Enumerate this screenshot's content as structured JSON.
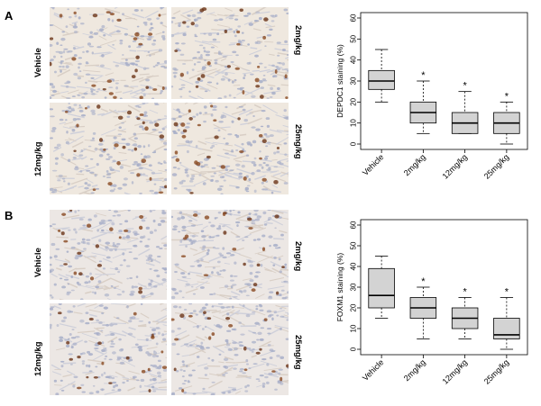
{
  "panels": [
    {
      "letter": "A",
      "image_labels": {
        "top_left": "Vehicle",
        "top_right": "2mg/kg",
        "bottom_left": "12mg/kg",
        "bottom_right": "25mg/kg"
      }
    },
    {
      "letter": "B",
      "image_labels": {
        "top_left": "Vehicle",
        "top_right": "2mg/kg",
        "bottom_left": "12mg/kg",
        "bottom_right": "25mg/kg"
      }
    }
  ],
  "chart_data": [
    {
      "type": "box",
      "title": "",
      "xlabel": "",
      "ylabel": "DEPDC1 staining (%)",
      "ylim": [
        0,
        60
      ],
      "yticks": [
        0,
        10,
        20,
        30,
        40,
        50,
        60
      ],
      "categories": [
        "Vehicle",
        "2mg/kg",
        "12mg/kg",
        "25mg/kg"
      ],
      "boxes": [
        {
          "min": 20,
          "q1": 26,
          "median": 30,
          "q3": 35,
          "max": 45,
          "star": ""
        },
        {
          "min": 5,
          "q1": 10,
          "median": 15,
          "q3": 20,
          "max": 30,
          "star": "*"
        },
        {
          "min": 5,
          "q1": 5,
          "median": 10,
          "q3": 15,
          "max": 25,
          "star": "*"
        },
        {
          "min": 0,
          "q1": 5,
          "median": 10,
          "q3": 15,
          "max": 20,
          "star": "*"
        }
      ],
      "box_fill": "#d3d3d3"
    },
    {
      "type": "box",
      "title": "",
      "xlabel": "",
      "ylabel": "FOXM1 staining (%)",
      "ylim": [
        0,
        60
      ],
      "yticks": [
        0,
        10,
        20,
        30,
        40,
        50,
        60
      ],
      "categories": [
        "Vehicle",
        "2mg/kg",
        "12mg/kg",
        "25mg/kg"
      ],
      "boxes": [
        {
          "min": 15,
          "q1": 20,
          "median": 26,
          "q3": 39,
          "max": 45,
          "star": ""
        },
        {
          "min": 5,
          "q1": 15,
          "median": 20,
          "q3": 25,
          "max": 30,
          "star": "*"
        },
        {
          "min": 5,
          "q1": 10,
          "median": 15,
          "q3": 20,
          "max": 25,
          "star": "*"
        },
        {
          "min": 0,
          "q1": 5,
          "median": 7,
          "q3": 15,
          "max": 25,
          "star": "*"
        }
      ],
      "box_fill": "#d3d3d3"
    }
  ]
}
